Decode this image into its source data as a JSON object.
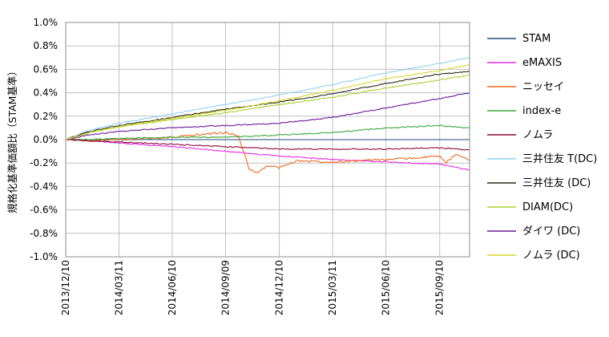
{
  "chart_data": {
    "type": "line",
    "title": "",
    "xlabel": "",
    "ylabel": "規格化基準価額比（STAM基準）",
    "ylim": [
      -1.0,
      1.0
    ],
    "y_ticks": [
      1.0,
      0.8,
      0.6,
      0.4,
      0.2,
      0.0,
      -0.2,
      -0.4,
      -0.6,
      -0.8,
      -1.0
    ],
    "y_tick_labels": [
      "1.0%",
      "0.8%",
      "0.6%",
      "0.4%",
      "0.2%",
      "0.0%",
      "-0.2%",
      "-0.4%",
      "-0.6%",
      "-0.8%",
      "-1.0%"
    ],
    "x_tick_labels": [
      "2013/12/10",
      "2014/03/11",
      "2014/06/10",
      "2014/09/09",
      "2014/12/10",
      "2015/03/11",
      "2015/06/10",
      "2015/09/10"
    ],
    "x_range": [
      "2013/12/10",
      "2015/10/31"
    ],
    "grid": true,
    "legend_position": "right",
    "series": [
      {
        "name": "STAM",
        "color": "#1f4e79",
        "x": [
          "2013/12/10",
          "2014/06/10",
          "2014/12/10",
          "2015/06/10",
          "2015/10/31"
        ],
        "values": [
          0.0,
          0.0,
          0.0,
          0.0,
          0.0
        ]
      },
      {
        "name": "eMAXIS",
        "color": "#e628e6",
        "x": [
          "2013/12/10",
          "2014/01/20",
          "2014/03/11",
          "2014/06/10",
          "2014/09/09",
          "2014/12/10",
          "2015/03/11",
          "2015/06/10",
          "2015/09/10",
          "2015/10/31"
        ],
        "values": [
          0.0,
          -0.01,
          -0.03,
          -0.06,
          -0.1,
          -0.14,
          -0.17,
          -0.19,
          -0.21,
          -0.26
        ]
      },
      {
        "name": "ニッセイ",
        "color": "#f26a1b",
        "x": [
          "2013/12/10",
          "2014/01/20",
          "2014/03/11",
          "2014/06/10",
          "2014/08/10",
          "2014/09/09",
          "2014/10/01",
          "2014/10/10",
          "2014/10/20",
          "2014/11/05",
          "2014/11/20",
          "2014/12/10",
          "2015/01/10",
          "2015/03/11",
          "2015/06/10",
          "2015/07/20",
          "2015/09/10",
          "2015/09/20",
          "2015/10/10",
          "2015/10/31"
        ],
        "values": [
          0.0,
          -0.01,
          0.0,
          0.02,
          0.05,
          0.06,
          0.03,
          -0.1,
          -0.26,
          -0.28,
          -0.22,
          -0.24,
          -0.18,
          -0.19,
          -0.17,
          -0.16,
          -0.14,
          -0.2,
          -0.12,
          -0.18
        ]
      },
      {
        "name": "index-e",
        "color": "#3ca63c",
        "x": [
          "2013/12/10",
          "2014/01/20",
          "2014/03/11",
          "2014/06/10",
          "2014/09/09",
          "2014/12/10",
          "2015/03/11",
          "2015/06/10",
          "2015/09/10",
          "2015/10/31"
        ],
        "values": [
          0.0,
          0.0,
          0.01,
          0.02,
          0.02,
          0.04,
          0.06,
          0.1,
          0.12,
          0.1
        ]
      },
      {
        "name": "ノムラ",
        "color": "#8b0a3c",
        "x": [
          "2013/12/10",
          "2014/01/20",
          "2014/03/11",
          "2014/06/10",
          "2014/09/09",
          "2014/12/10",
          "2015/03/11",
          "2015/06/10",
          "2015/09/10",
          "2015/10/31"
        ],
        "values": [
          0.0,
          -0.01,
          -0.02,
          -0.04,
          -0.06,
          -0.08,
          -0.08,
          -0.08,
          -0.07,
          -0.09
        ]
      },
      {
        "name": "三井住友 T(DC)",
        "color": "#8fd3f2",
        "x": [
          "2013/12/10",
          "2014/01/20",
          "2014/03/11",
          "2014/06/10",
          "2014/09/09",
          "2014/12/10",
          "2015/03/11",
          "2015/06/10",
          "2015/09/10",
          "2015/10/31"
        ],
        "values": [
          0.0,
          0.08,
          0.14,
          0.22,
          0.3,
          0.38,
          0.47,
          0.57,
          0.65,
          0.7
        ]
      },
      {
        "name": "三井住友 (DC)",
        "color": "#2b2b14",
        "x": [
          "2013/12/10",
          "2014/01/20",
          "2014/03/11",
          "2014/06/10",
          "2014/09/09",
          "2014/12/10",
          "2015/03/11",
          "2015/06/10",
          "2015/09/10",
          "2015/10/31"
        ],
        "values": [
          0.0,
          0.07,
          0.12,
          0.19,
          0.26,
          0.32,
          0.39,
          0.48,
          0.56,
          0.58
        ]
      },
      {
        "name": "DIAM(DC)",
        "color": "#a8cf2e",
        "x": [
          "2013/12/10",
          "2014/01/20",
          "2014/03/11",
          "2014/06/10",
          "2014/09/09",
          "2014/12/10",
          "2015/03/11",
          "2015/06/10",
          "2015/09/10",
          "2015/10/31"
        ],
        "values": [
          0.0,
          0.06,
          0.11,
          0.17,
          0.23,
          0.3,
          0.36,
          0.44,
          0.51,
          0.55
        ]
      },
      {
        "name": "ダイワ (DC)",
        "color": "#6a1b9a",
        "x": [
          "2013/12/10",
          "2014/01/20",
          "2014/03/11",
          "2014/06/10",
          "2014/09/09",
          "2014/12/10",
          "2015/03/11",
          "2015/06/10",
          "2015/09/10",
          "2015/10/31"
        ],
        "values": [
          0.0,
          0.04,
          0.07,
          0.1,
          0.12,
          0.14,
          0.19,
          0.27,
          0.35,
          0.4
        ]
      },
      {
        "name": "ノムラ (DC)",
        "color": "#d6d62a",
        "x": [
          "2013/12/10",
          "2014/01/20",
          "2014/03/11",
          "2014/06/10",
          "2014/09/09",
          "2014/12/10",
          "2015/03/11",
          "2015/06/10",
          "2015/09/10",
          "2015/10/31"
        ],
        "values": [
          0.0,
          0.06,
          0.11,
          0.18,
          0.25,
          0.33,
          0.42,
          0.52,
          0.59,
          0.64
        ]
      }
    ]
  }
}
